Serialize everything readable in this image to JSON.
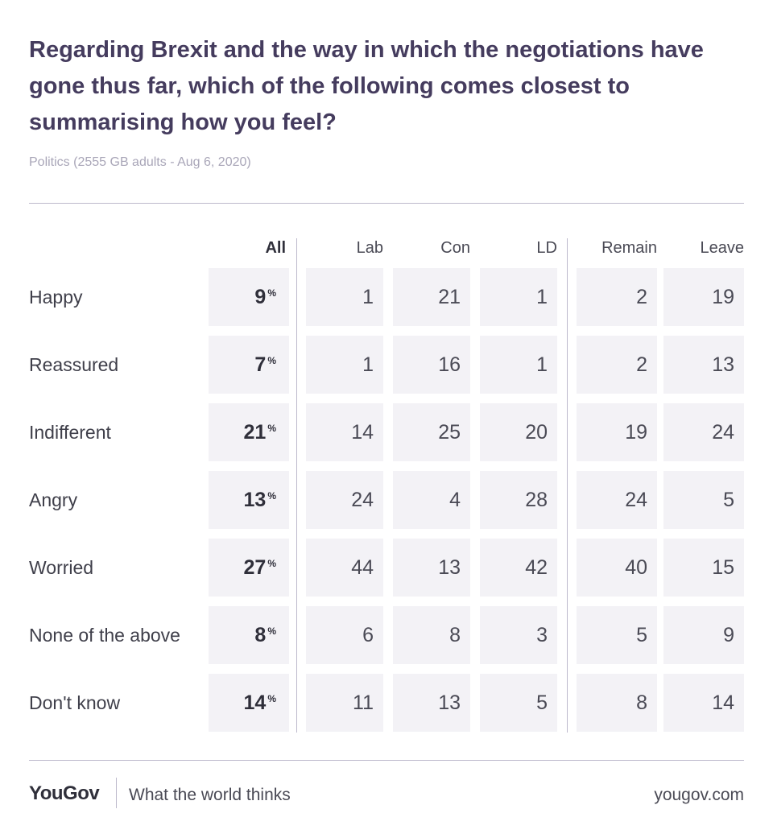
{
  "title": "Regarding Brexit and the way in which the negotiations have gone thus far, which of the following comes closest to summarising how you feel?",
  "subtitle": "Politics (2555 GB adults - Aug 6, 2020)",
  "colors": {
    "title": "#453c5e",
    "cell_bg": "#f3f2f6",
    "rule": "#bdb9cc"
  },
  "chart_data": {
    "type": "table",
    "columns": [
      "All",
      "Lab",
      "Con",
      "LD",
      "Remain",
      "Leave"
    ],
    "rows": [
      {
        "label": "Happy",
        "values": [
          9,
          1,
          21,
          1,
          2,
          19
        ]
      },
      {
        "label": "Reassured",
        "values": [
          7,
          1,
          16,
          1,
          2,
          13
        ]
      },
      {
        "label": "Indifferent",
        "values": [
          21,
          14,
          25,
          20,
          19,
          24
        ]
      },
      {
        "label": "Angry",
        "values": [
          13,
          24,
          4,
          28,
          24,
          5
        ]
      },
      {
        "label": "Worried",
        "values": [
          27,
          44,
          13,
          42,
          40,
          15
        ]
      },
      {
        "label": "None of the above",
        "values": [
          8,
          6,
          8,
          3,
          5,
          9
        ]
      },
      {
        "label": "Don't know",
        "values": [
          14,
          11,
          13,
          5,
          8,
          14
        ]
      }
    ],
    "percent_symbol": "%"
  },
  "footer": {
    "logo": "YouGov",
    "tagline": "What the world thinks",
    "site": "yougov.com"
  }
}
